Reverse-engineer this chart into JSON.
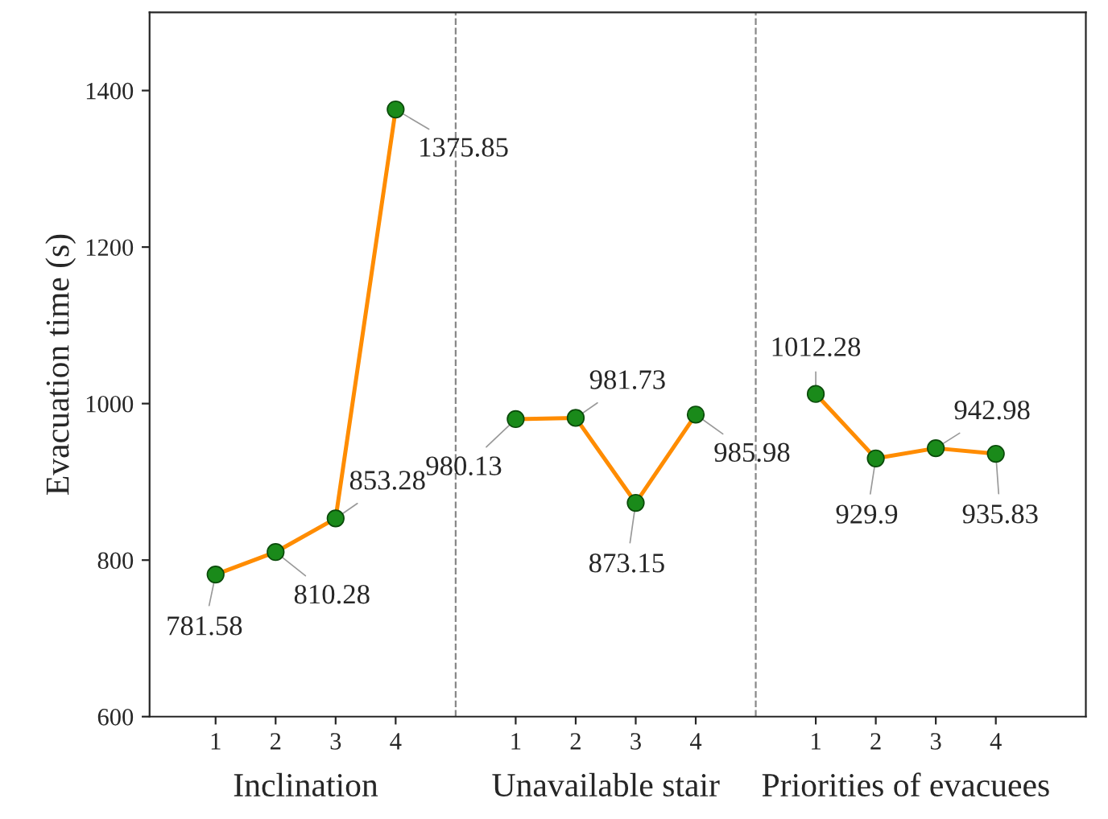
{
  "chart_data": {
    "type": "line",
    "ylabel": "Evacuation time (s)",
    "categories": [
      "1",
      "2",
      "3",
      "4",
      null,
      "1",
      "2",
      "3",
      "4",
      null,
      "1",
      "2",
      "3",
      "4"
    ],
    "ylim": [
      600,
      1500
    ],
    "yticks": [
      600,
      800,
      1000,
      1200,
      1400
    ],
    "series": [
      {
        "color": "#ff8c00",
        "values": [
          781.58,
          810.28,
          853.28,
          1375.85,
          null,
          980.13,
          981.73,
          873.15,
          985.98,
          null,
          1012.28,
          929.9,
          942.98,
          935.83
        ]
      }
    ],
    "marker": "circle",
    "data_labels": true,
    "annotations": [
      "Inclination",
      "Unavailable stair",
      "Priorities of evacuees"
    ]
  }
}
